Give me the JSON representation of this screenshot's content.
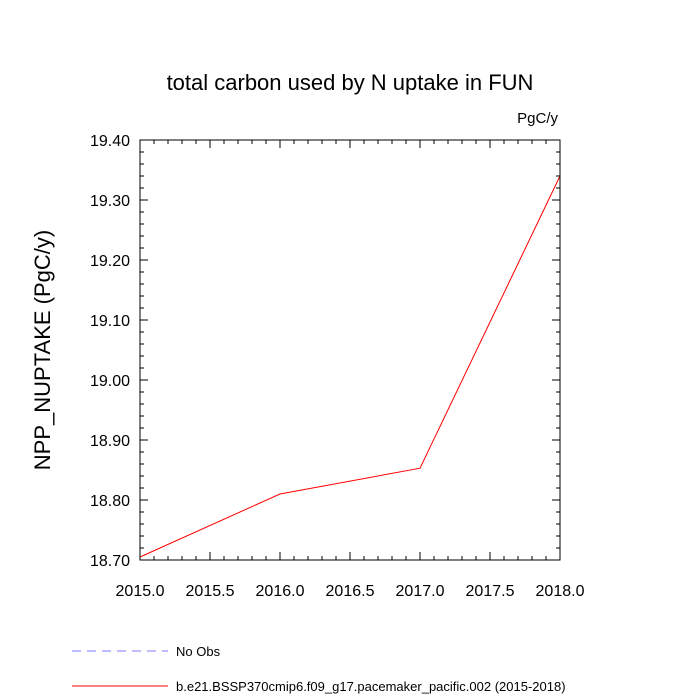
{
  "chart_data": {
    "type": "line",
    "title": "total carbon used by N uptake in FUN",
    "units_label": "PgC/y",
    "ylabel": "NPP_NUPTAKE  (PgC/y)",
    "xlabel": "",
    "xlim": [
      2015.0,
      2018.0
    ],
    "ylim": [
      18.7,
      19.4
    ],
    "x_ticks": [
      "2015.0",
      "2015.5",
      "2016.0",
      "2016.5",
      "2017.0",
      "2017.5",
      "2018.0"
    ],
    "x_tick_values": [
      2015.0,
      2015.5,
      2016.0,
      2016.5,
      2017.0,
      2017.5,
      2018.0
    ],
    "y_ticks": [
      "18.70",
      "18.80",
      "18.90",
      "19.00",
      "19.10",
      "19.20",
      "19.30",
      "19.40"
    ],
    "y_tick_values": [
      18.7,
      18.8,
      18.9,
      19.0,
      19.1,
      19.2,
      19.3,
      19.4
    ],
    "grid": false,
    "legend_position": "bottom",
    "series": [
      {
        "name": "b.e21.BSSP370cmip6.f09_g17.pacemaker_pacific.002 (2015-2018)",
        "color": "#ff0000",
        "dash": "solid",
        "x": [
          2015,
          2016,
          2017,
          2018
        ],
        "values": [
          18.705,
          18.81,
          18.853,
          19.34
        ]
      }
    ],
    "legend": [
      {
        "label": "No Obs",
        "color": "#7a7aff",
        "dash": "dashed"
      },
      {
        "label": "b.e21.BSSP370cmip6.f09_g17.pacemaker_pacific.002 (2015-2018)",
        "color": "#ff0000",
        "dash": "solid"
      }
    ]
  }
}
